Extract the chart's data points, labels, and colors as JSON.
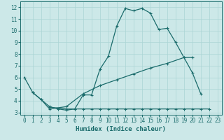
{
  "xlabel": "Humidex (Indice chaleur)",
  "bg_color": "#cce8e8",
  "line_color": "#1a6b6b",
  "grid_color": "#aad4d4",
  "xlim": [
    -0.5,
    23.5
  ],
  "ylim": [
    2.8,
    12.5
  ],
  "xticks": [
    0,
    1,
    2,
    3,
    4,
    5,
    6,
    7,
    8,
    9,
    10,
    11,
    12,
    13,
    14,
    15,
    16,
    17,
    18,
    19,
    20,
    21,
    22,
    23
  ],
  "yticks": [
    3,
    4,
    5,
    6,
    7,
    8,
    9,
    10,
    11,
    12
  ],
  "line1_x": [
    0,
    1,
    2,
    3,
    4,
    5,
    6,
    7,
    8,
    9,
    10,
    11,
    12,
    13,
    14,
    15,
    16,
    17,
    18,
    19,
    20,
    21
  ],
  "line1_y": [
    6.0,
    4.7,
    4.1,
    3.5,
    3.3,
    3.2,
    3.3,
    4.5,
    4.5,
    6.7,
    7.8,
    10.4,
    11.9,
    11.7,
    11.9,
    11.5,
    10.1,
    10.2,
    9.0,
    7.7,
    6.4,
    4.6
  ],
  "line2_x": [
    1,
    2,
    3,
    5,
    7,
    9,
    11,
    13,
    15,
    17,
    19,
    20
  ],
  "line2_y": [
    4.7,
    4.1,
    3.3,
    3.5,
    4.6,
    5.3,
    5.8,
    6.3,
    6.8,
    7.2,
    7.7,
    7.7
  ],
  "line3_x": [
    3,
    5,
    6,
    7,
    8,
    9,
    10,
    11,
    12,
    13,
    14,
    15,
    16,
    17,
    18,
    19,
    20,
    21,
    22
  ],
  "line3_y": [
    3.45,
    3.3,
    3.3,
    3.3,
    3.3,
    3.3,
    3.3,
    3.3,
    3.3,
    3.3,
    3.3,
    3.3,
    3.3,
    3.3,
    3.3,
    3.3,
    3.3,
    3.3,
    3.3
  ],
  "fontsize_label": 6.5,
  "fontsize_tick": 5.5
}
